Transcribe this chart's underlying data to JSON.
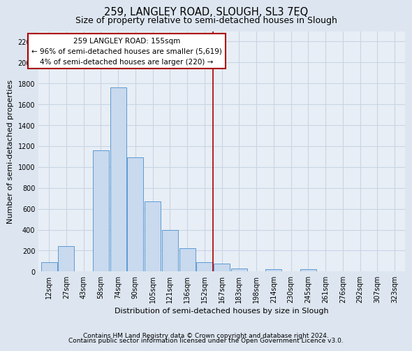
{
  "title": "259, LANGLEY ROAD, SLOUGH, SL3 7EQ",
  "subtitle": "Size of property relative to semi-detached houses in Slough",
  "xlabel": "Distribution of semi-detached houses by size in Slough",
  "ylabel": "Number of semi-detached properties",
  "bin_labels": [
    "12sqm",
    "27sqm",
    "43sqm",
    "58sqm",
    "74sqm",
    "90sqm",
    "105sqm",
    "121sqm",
    "136sqm",
    "152sqm",
    "167sqm",
    "183sqm",
    "198sqm",
    "214sqm",
    "230sqm",
    "245sqm",
    "261sqm",
    "276sqm",
    "292sqm",
    "307sqm",
    "323sqm"
  ],
  "bar_heights": [
    90,
    245,
    0,
    1160,
    1760,
    1090,
    670,
    400,
    225,
    90,
    75,
    30,
    0,
    20,
    0,
    20,
    0,
    0,
    0,
    0,
    0
  ],
  "bar_color": "#c9d9ee",
  "bar_edge_color": "#5b9bd5",
  "vline_x": 9.5,
  "vline_color": "#aa0000",
  "annotation_text": "259 LANGLEY ROAD: 155sqm\n← 96% of semi-detached houses are smaller (5,619)\n4% of semi-detached houses are larger (220) →",
  "annotation_box_edge_color": "#aa0000",
  "ylim": [
    0,
    2300
  ],
  "yticks": [
    0,
    200,
    400,
    600,
    800,
    1000,
    1200,
    1400,
    1600,
    1800,
    2000,
    2200
  ],
  "footer_line1": "Contains HM Land Registry data © Crown copyright and database right 2024.",
  "footer_line2": "Contains public sector information licensed under the Open Government Licence v3.0.",
  "fig_bg_color": "#dde6f0",
  "plot_bg_color": "#e8eef5",
  "grid_color": "#c8d5e5",
  "title_fontsize": 10.5,
  "subtitle_fontsize": 9,
  "axis_label_fontsize": 8,
  "tick_fontsize": 7,
  "footer_fontsize": 6.5,
  "ann_fontsize": 7.5
}
